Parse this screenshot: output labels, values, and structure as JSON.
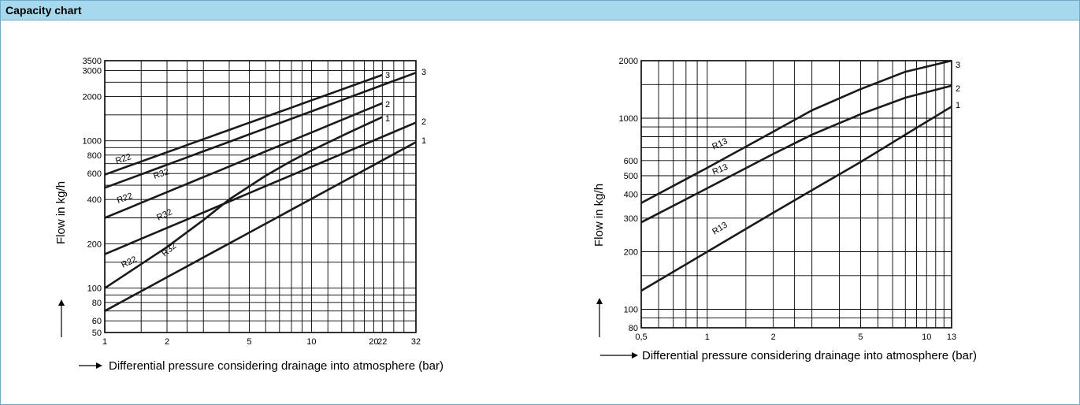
{
  "header": {
    "title": "Capacity chart"
  },
  "chart_data": [
    {
      "type": "line",
      "log_x": true,
      "log_y": true,
      "xlim": [
        1,
        32
      ],
      "ylim": [
        50,
        3500
      ],
      "xticks": [
        1,
        2,
        5,
        10,
        20,
        22,
        32
      ],
      "yticks": [
        50,
        60,
        80,
        100,
        200,
        400,
        600,
        800,
        1000,
        2000,
        3000,
        3500
      ],
      "x_grid": [
        1,
        1.5,
        2,
        2.5,
        3,
        4,
        5,
        6,
        7,
        8,
        9,
        10,
        12,
        14,
        16,
        18,
        20,
        22,
        25,
        28,
        32
      ],
      "y_grid": [
        50,
        60,
        70,
        80,
        90,
        100,
        150,
        200,
        300,
        400,
        500,
        600,
        700,
        800,
        900,
        1000,
        1500,
        2000,
        2500,
        3000,
        3500
      ],
      "ylabel": "Flow in kg/h",
      "xlabel": "Differential pressure considering drainage into atmosphere (bar)",
      "grid": true,
      "series": [
        {
          "name": "3",
          "label": "R22",
          "x": [
            1,
            22
          ],
          "y": [
            590,
            2800
          ]
        },
        {
          "name": "3",
          "label": "R32",
          "x": [
            1,
            32
          ],
          "y": [
            480,
            2900
          ]
        },
        {
          "name": "2",
          "label": "R22",
          "x": [
            1,
            22
          ],
          "y": [
            300,
            1800
          ]
        },
        {
          "name": "2",
          "label": "R32",
          "x": [
            1,
            32
          ],
          "y": [
            170,
            1330
          ]
        },
        {
          "name": "1",
          "label": "R22",
          "x": [
            1,
            2,
            3,
            4,
            6,
            8,
            10,
            15,
            22
          ],
          "y": [
            100,
            190,
            290,
            400,
            580,
            730,
            860,
            1130,
            1450
          ]
        },
        {
          "name": "1",
          "label": "R32",
          "x": [
            1,
            32
          ],
          "y": [
            70,
            980
          ]
        }
      ],
      "curve_labels": [
        "R22",
        "R32",
        "R22",
        "R32",
        "R22",
        "R32"
      ],
      "end_labels": [
        "3",
        "3",
        "2",
        "2",
        "1",
        "1"
      ]
    },
    {
      "type": "line",
      "log_x": true,
      "log_y": true,
      "xlim": [
        0.5,
        13
      ],
      "ylim": [
        80,
        2000
      ],
      "xticks": [
        0.5,
        1,
        2,
        5,
        10,
        13
      ],
      "xtick_labels": [
        "0,5",
        "1",
        "2",
        "5",
        "10",
        "13"
      ],
      "yticks": [
        80,
        100,
        200,
        300,
        400,
        500,
        600,
        1000,
        2000
      ],
      "x_grid": [
        0.5,
        0.6,
        0.7,
        0.8,
        0.9,
        1,
        1.5,
        2,
        2.5,
        3,
        4,
        5,
        6,
        7,
        8,
        9,
        10,
        11,
        12,
        13
      ],
      "y_grid": [
        80,
        90,
        100,
        150,
        200,
        300,
        400,
        500,
        600,
        700,
        800,
        900,
        1000,
        1500,
        2000
      ],
      "ylabel": "Flow in kg/h",
      "xlabel": "Differential pressure considering drainage into atmosphere (bar)",
      "grid": true,
      "series": [
        {
          "name": "3",
          "label": "R13",
          "x": [
            0.5,
            1,
            2,
            3,
            5,
            8,
            13
          ],
          "y": [
            360,
            550,
            850,
            1100,
            1420,
            1750,
            2000
          ]
        },
        {
          "name": "2",
          "label": "R13",
          "x": [
            0.5,
            1,
            2,
            3,
            5,
            8,
            13
          ],
          "y": [
            285,
            430,
            650,
            820,
            1050,
            1280,
            1480
          ]
        },
        {
          "name": "1",
          "label": "R13",
          "x": [
            0.5,
            1,
            2,
            3,
            5,
            8,
            13
          ],
          "y": [
            125,
            200,
            320,
            420,
            590,
            820,
            1150
          ]
        }
      ],
      "curve_labels": [
        "R13",
        "R13",
        "R13"
      ],
      "end_labels": [
        "3",
        "2",
        "1"
      ]
    }
  ]
}
